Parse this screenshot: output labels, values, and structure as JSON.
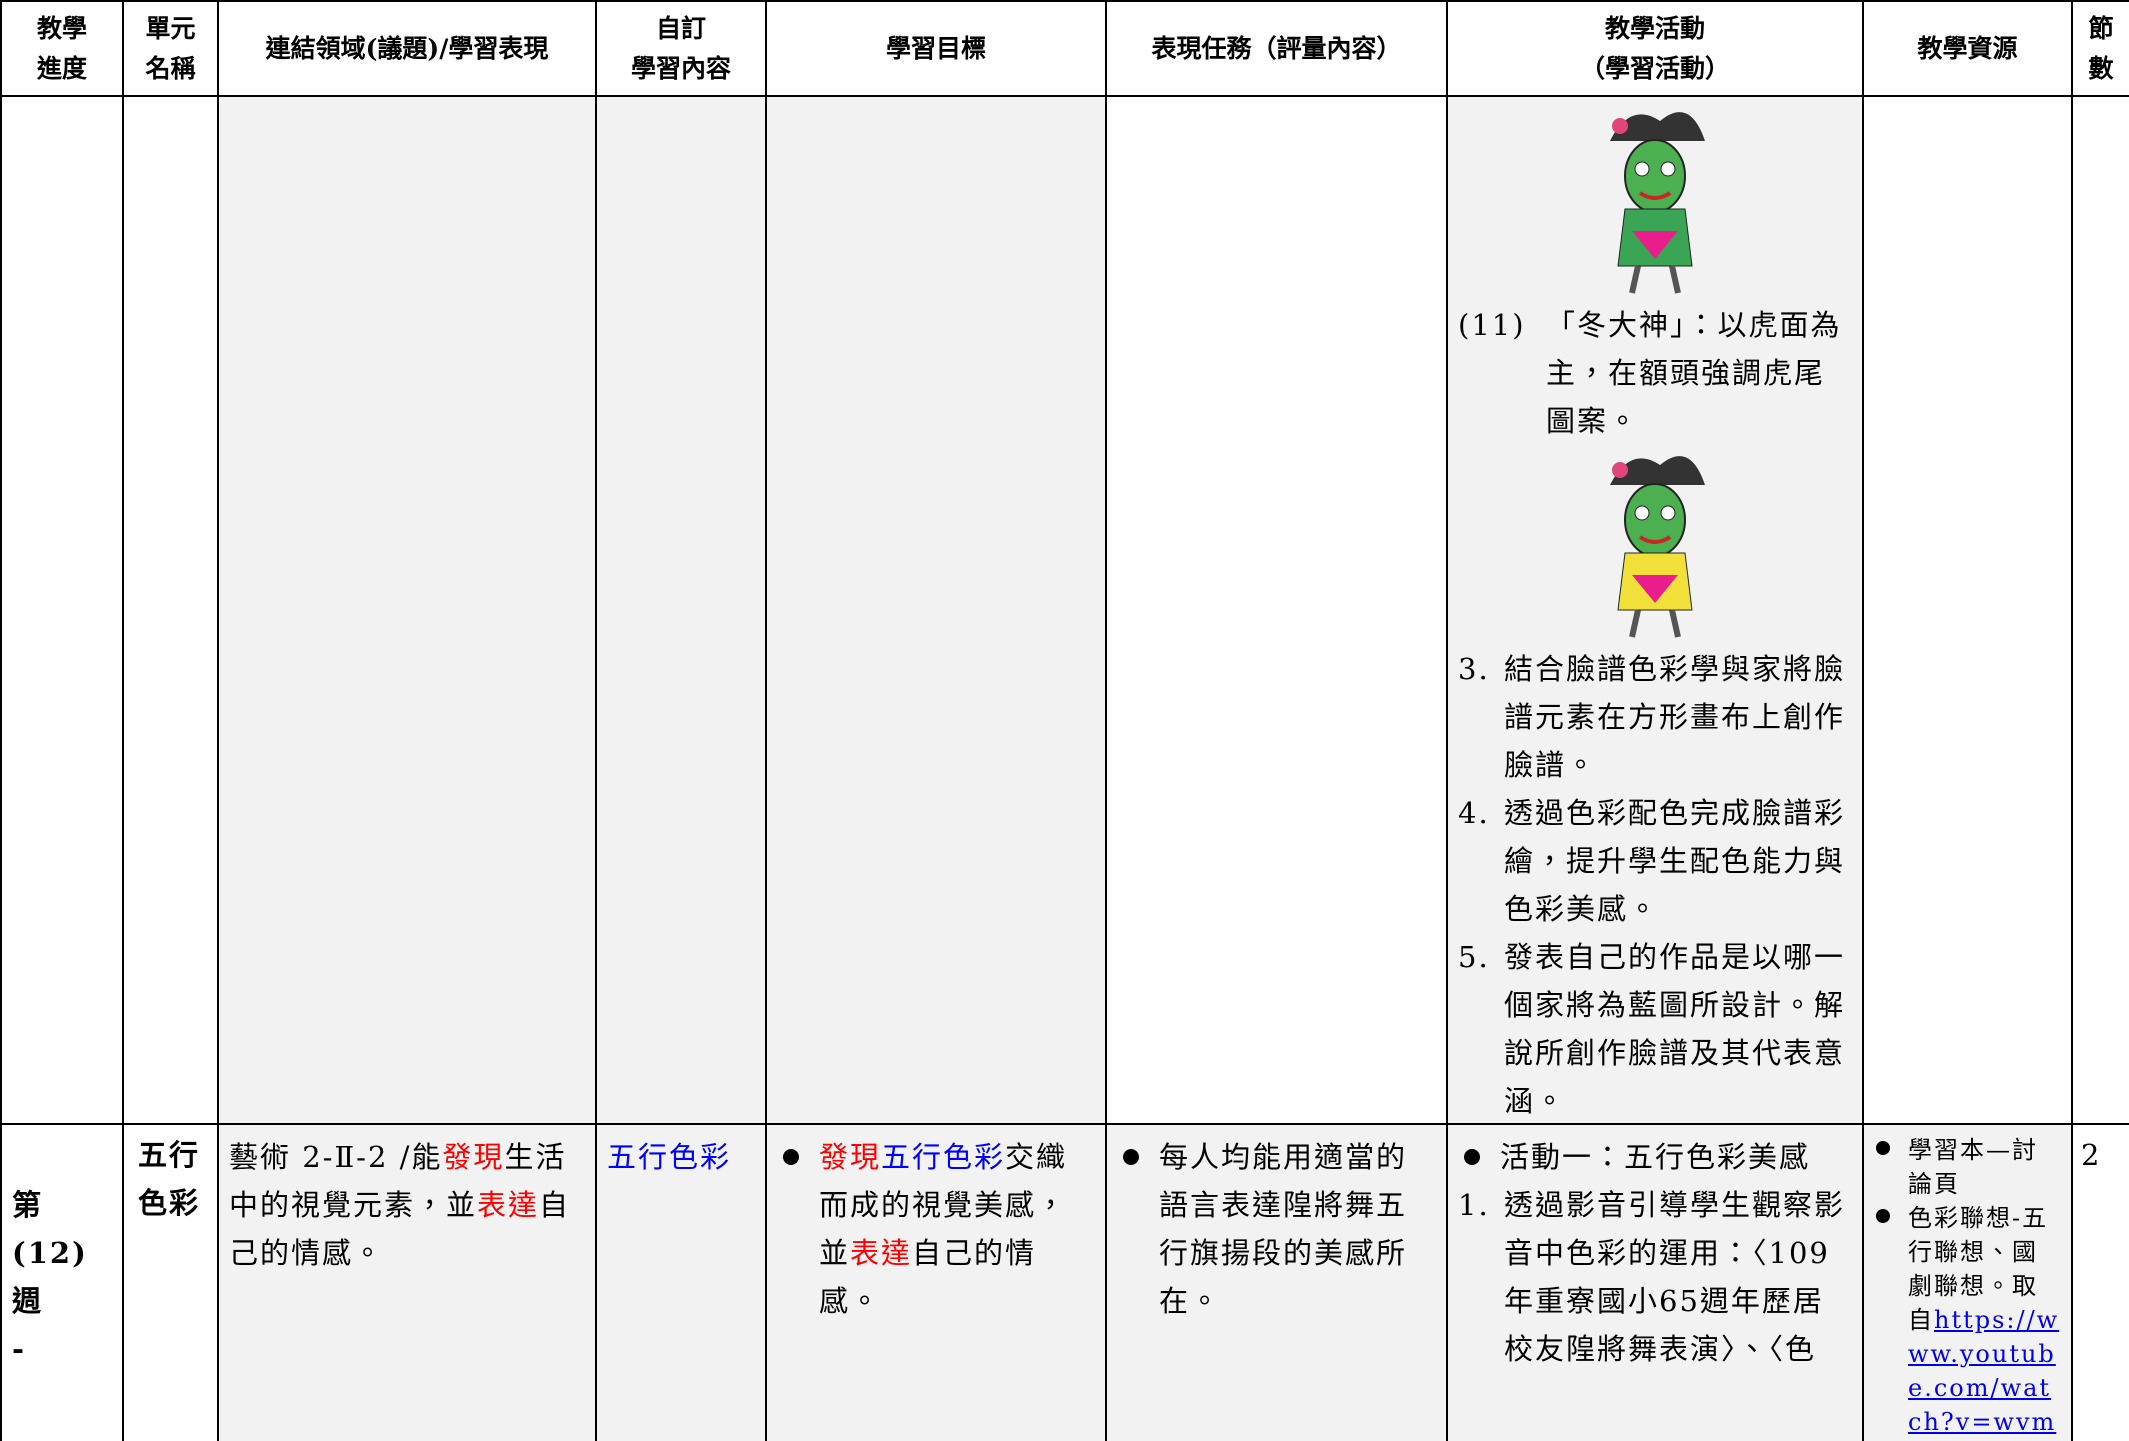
{
  "header": [
    [
      "教學",
      "進度"
    ],
    [
      "單元",
      "名稱"
    ],
    [
      "連結領域(議題)/學習表現"
    ],
    [
      "自訂",
      "學習內容"
    ],
    [
      "學習目標"
    ],
    [
      "表現任務（評量內容）"
    ],
    [
      "教學活動",
      "（學習活動）"
    ],
    [
      "教學資源"
    ],
    [
      "節",
      "數"
    ]
  ],
  "row1": {
    "activities": [
      {
        "num": "(11)",
        "text": "「冬大神」：以虎面為主，在額頭強調虎尾圖案。"
      },
      {
        "num": "3.",
        "text": "結合臉譜色彩學與家將臉譜元素在方形畫布上創作臉譜。"
      },
      {
        "num": "4.",
        "text": "透過色彩配色完成臉譜彩繪，提升學生配色能力與色彩美感。"
      },
      {
        "num": "5.",
        "text": "發表自己的作品是以哪一個家將為藍圖所設計。解說所創作臉譜及其代表意涵。"
      }
    ]
  },
  "row2": {
    "week": [
      "第",
      "(12)",
      "週",
      "-"
    ],
    "unit": "五行色彩",
    "performance": [
      {
        "text": "藝術 2-Ⅱ-2 /能"
      },
      {
        "text": "發現",
        "color": "#ff0000"
      },
      {
        "text": "生活中的視覺元素，並"
      },
      {
        "text": "表達",
        "color": "#ff0000"
      },
      {
        "text": "自己的情感。"
      }
    ],
    "content": [
      {
        "text": "五行色彩",
        "color": "#0000ff"
      }
    ],
    "goal": [
      {
        "text": "發現",
        "color": "#ff0000"
      },
      {
        "text": "五行色彩",
        "color": "#0000ff"
      },
      {
        "text": "交織而成的視覺美感，並"
      },
      {
        "text": "表達",
        "color": "#ff0000"
      },
      {
        "text": "自己的情感。"
      }
    ],
    "task": "每人均能用適當的語言表達隍將舞五行旗揚段的美感所在。",
    "activity_title": "活動一：五行色彩美感",
    "activity_items": [
      {
        "num": "1.",
        "text": "透過影音引導學生觀察影音中色彩的運用：〈109年重寮國小65週年歷居校友隍將舞表演〉、〈色"
      }
    ],
    "resources": [
      {
        "text": "學習本—討論頁"
      },
      {
        "text": "色彩聯想-五行聯想、國劇聯想。取自",
        "link": "https://www.youtube.com/watch?v=wvm"
      }
    ],
    "periods": "2"
  }
}
